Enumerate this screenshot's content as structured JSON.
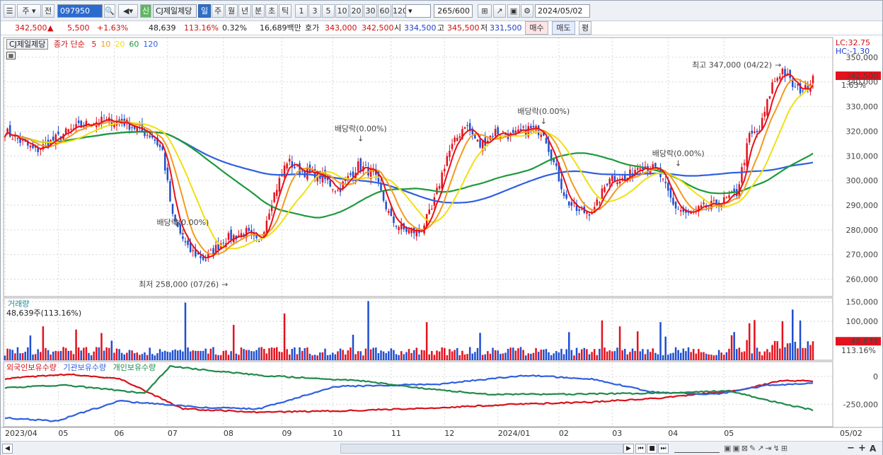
{
  "toolbar": {
    "period_select": "주",
    "prev_label": "전",
    "code": "097950",
    "badge": "신",
    "name": "CJ제일제당",
    "periods": [
      "일",
      "주",
      "월",
      "년",
      "분",
      "초",
      "틱"
    ],
    "active_period": "일",
    "intervals": [
      "1",
      "3",
      "5",
      "10",
      "20",
      "30",
      "60",
      "120"
    ],
    "count": "265/600",
    "date": "2024/05/02"
  },
  "quote": {
    "price": "342,500",
    "change": "5,500",
    "pct": "+1.63%",
    "volume": "48,639",
    "vol_ratio": "113.16%",
    "turnover": "0.32%",
    "amount": "16,689백만",
    "hoga_label": "호가",
    "ask": "343,000",
    "bid": "342,500",
    "open_label": "시",
    "open": "334,500",
    "high_label": "고",
    "high": "345,500",
    "low_label": "저",
    "low": "331,500",
    "buy": "매수",
    "sell": "매도",
    "flat": "평"
  },
  "price_panel": {
    "title": "CJ제일제당",
    "ma_label": "종가 단순",
    "ma_periods": [
      "5",
      "10",
      "20",
      "60",
      "120"
    ],
    "lc": "LC:32.75",
    "hc": "HC:-1.30",
    "current_price": "342,500",
    "current_pct": "1.63%",
    "high_note": "최고 347,000 (04/22)",
    "low_note": "최저 258,000 (07/26)",
    "div_notes": [
      "배당락(0.00%)",
      "배당락(0.00%)",
      "배당락(0.00%)",
      "배당락(0.00%)"
    ]
  },
  "volume_panel": {
    "title": "거래량",
    "value": "48,639주(113.16%)",
    "current": "48,639",
    "current_pct": "113.16%"
  },
  "holding_panel": {
    "series": [
      "외국인보유수량",
      "기관보유수량",
      "개인보유수량"
    ]
  },
  "chart_data": [
    {
      "type": "candlestick",
      "title": "CJ제일제당",
      "x_labels": [
        "2023/04",
        "05",
        "06",
        "07",
        "08",
        "09",
        "10",
        "11",
        "12",
        "2024/01",
        "02",
        "03",
        "04",
        "05"
      ],
      "y_ticks": [
        260000,
        270000,
        280000,
        290000,
        300000,
        310000,
        320000,
        330000,
        340000,
        350000
      ],
      "ylim": [
        253000,
        358000
      ],
      "close_anchors": [
        [
          0,
          320000
        ],
        [
          12,
          312000
        ],
        [
          25,
          320000
        ],
        [
          35,
          324000
        ],
        [
          46,
          324000
        ],
        [
          58,
          318000
        ],
        [
          62,
          312000
        ],
        [
          66,
          285000
        ],
        [
          72,
          272000
        ],
        [
          79,
          268000
        ],
        [
          86,
          276000
        ],
        [
          95,
          279000
        ],
        [
          100,
          274000
        ],
        [
          105,
          292000
        ],
        [
          111,
          308000
        ],
        [
          116,
          304000
        ],
        [
          124,
          302000
        ],
        [
          131,
          296000
        ],
        [
          139,
          306000
        ],
        [
          145,
          303000
        ],
        [
          152,
          284000
        ],
        [
          157,
          280000
        ],
        [
          163,
          279000
        ],
        [
          168,
          288000
        ],
        [
          174,
          310000
        ],
        [
          181,
          323000
        ],
        [
          187,
          314000
        ],
        [
          193,
          320000
        ],
        [
          200,
          318000
        ],
        [
          206,
          321000
        ],
        [
          212,
          320000
        ],
        [
          215,
          310000
        ],
        [
          221,
          292000
        ],
        [
          226,
          287000
        ],
        [
          232,
          288000
        ],
        [
          238,
          302000
        ],
        [
          244,
          300000
        ],
        [
          250,
          307000
        ],
        [
          257,
          304000
        ],
        [
          263,
          290000
        ],
        [
          269,
          286000
        ],
        [
          275,
          289000
        ],
        [
          282,
          291000
        ],
        [
          288,
          295000
        ],
        [
          293,
          318000
        ],
        [
          297,
          320000
        ],
        [
          302,
          339000
        ],
        [
          306,
          345000
        ],
        [
          311,
          337000
        ],
        [
          315,
          337000
        ],
        [
          318,
          342500
        ]
      ],
      "ma_colors": {
        "5": "#e8101a",
        "10": "#f39a1e",
        "20": "#f0e010",
        "60": "#1d9a3c",
        "120": "#2f5fe0"
      },
      "current_close": 342500,
      "high": {
        "value": 347000,
        "date": "04/22"
      },
      "low": {
        "value": 258000,
        "date": "07/26"
      }
    },
    {
      "type": "bar",
      "title": "거래량",
      "y_ticks": [
        100000,
        150000
      ],
      "ylim": [
        0,
        160000
      ],
      "current": 48639
    },
    {
      "type": "line",
      "y_ticks": [
        0,
        -250000
      ],
      "series": [
        {
          "name": "외국인보유수량",
          "color": "#d8111a"
        },
        {
          "name": "기관보유수량",
          "color": "#2f5fe0"
        },
        {
          "name": "개인보유수량",
          "color": "#1e8a4a"
        }
      ]
    }
  ],
  "date_axis": [
    "2023/04",
    "05",
    "06",
    "07",
    "08",
    "09",
    "10",
    "11",
    "12",
    "2024/01",
    "02",
    "03",
    "04",
    "05",
    "05/02"
  ]
}
